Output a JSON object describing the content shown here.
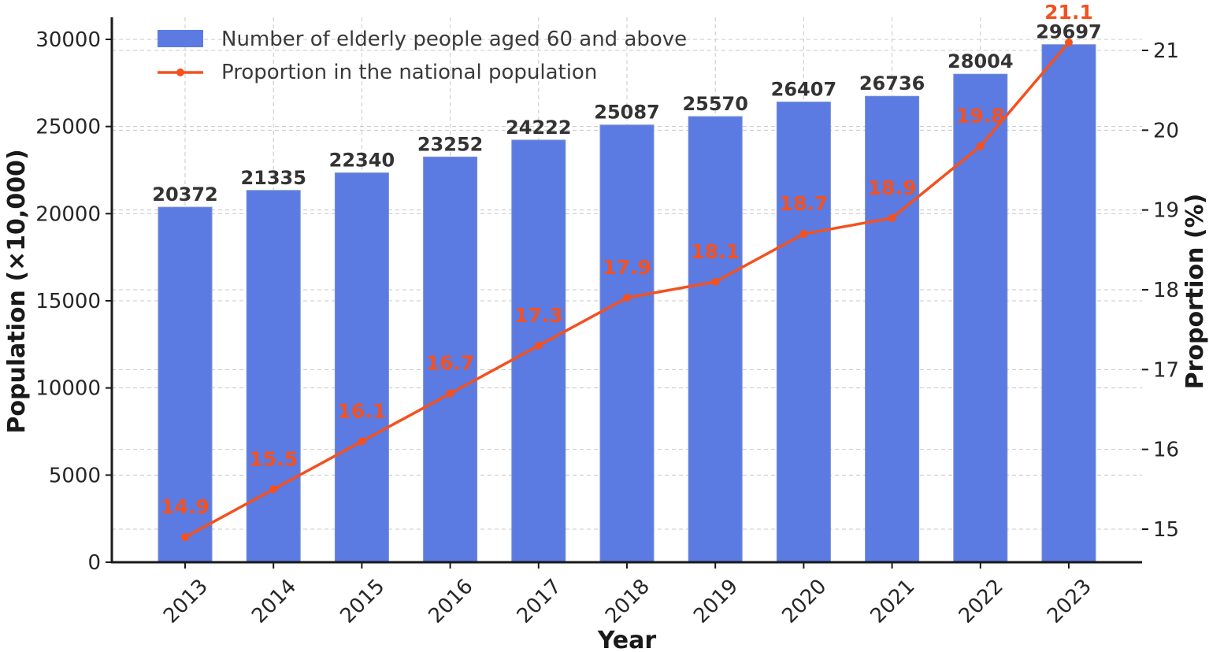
{
  "chart_data": {
    "type": "bar",
    "categories": [
      "2013",
      "2014",
      "2015",
      "2016",
      "2017",
      "2018",
      "2019",
      "2020",
      "2021",
      "2022",
      "2023"
    ],
    "xlabel": "Year",
    "ylabel": "Population (×10,000)",
    "y2label": "Proportion (%)",
    "ylim": [
      0,
      30000
    ],
    "y2lim": [
      14.5,
      21.1
    ],
    "yticks": [
      0,
      5000,
      10000,
      15000,
      20000,
      25000,
      30000
    ],
    "y2ticks": [
      15,
      16,
      17,
      18,
      19,
      20,
      21
    ],
    "grid": true,
    "legend_position": "top-left",
    "series": [
      {
        "name": "Number of elderly people aged 60 and above",
        "type": "bar",
        "axis": "left",
        "color": "#5b7be3",
        "values": [
          20372,
          21335,
          22340,
          23252,
          24222,
          25087,
          25570,
          26407,
          26736,
          28004,
          29697
        ]
      },
      {
        "name": "Proportion in the national population",
        "type": "line",
        "axis": "right",
        "color": "#f4511e",
        "values": [
          14.9,
          15.5,
          16.1,
          16.7,
          17.3,
          17.9,
          18.1,
          18.7,
          18.9,
          19.8,
          21.1
        ]
      }
    ]
  }
}
